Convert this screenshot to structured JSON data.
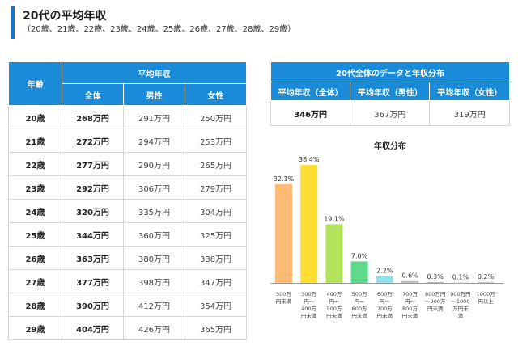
{
  "heading": {
    "title": "20代の平均年収",
    "subtitle": "（20歳、21歳、22歳、23歳、24歳、25歳、26歳、27歳、28歳、29歳）"
  },
  "age_table": {
    "header_age": "年齢",
    "header_group": "平均年収",
    "header_all": "全体",
    "header_male": "男性",
    "header_female": "女性",
    "rows": [
      {
        "age": "20歳",
        "all": "268万円",
        "male": "291万円",
        "female": "250万円"
      },
      {
        "age": "21歳",
        "all": "272万円",
        "male": "294万円",
        "female": "253万円"
      },
      {
        "age": "22歳",
        "all": "277万円",
        "male": "290万円",
        "female": "265万円"
      },
      {
        "age": "23歳",
        "all": "292万円",
        "male": "306万円",
        "female": "279万円"
      },
      {
        "age": "24歳",
        "all": "320万円",
        "male": "335万円",
        "female": "304万円"
      },
      {
        "age": "25歳",
        "all": "344万円",
        "male": "360万円",
        "female": "325万円"
      },
      {
        "age": "26歳",
        "all": "363万円",
        "male": "380万円",
        "female": "338万円"
      },
      {
        "age": "27歳",
        "all": "377万円",
        "male": "398万円",
        "female": "347万円"
      },
      {
        "age": "28歳",
        "all": "390万円",
        "male": "412万円",
        "female": "354万円"
      },
      {
        "age": "29歳",
        "all": "404万円",
        "male": "426万円",
        "female": "365万円"
      }
    ]
  },
  "summary_table": {
    "header": "20代全体のデータと年収分布",
    "col_all": "平均年収（全体）",
    "col_male": "平均年収（男性）",
    "col_female": "平均年収（女性）",
    "val_all": "346万円",
    "val_male": "367万円",
    "val_female": "319万円"
  },
  "chart_data": {
    "type": "bar",
    "title": "年収分布",
    "categories": [
      [
        "300万",
        "円未満"
      ],
      [
        "300万",
        "円～",
        "400万",
        "円未満"
      ],
      [
        "400万",
        "円～",
        "500万",
        "円未満"
      ],
      [
        "500万",
        "円～",
        "600万",
        "円未満"
      ],
      [
        "600万",
        "円～",
        "700万",
        "円未満"
      ],
      [
        "700万",
        "円～",
        "800万",
        "円未満"
      ],
      [
        "800万円",
        "～900万",
        "円未満"
      ],
      [
        "900万円",
        "～1000",
        "万円未",
        "満"
      ],
      [
        "1000万",
        "円以上"
      ]
    ],
    "values": [
      32.1,
      38.4,
      19.1,
      7.0,
      2.2,
      0.6,
      0.3,
      0.1,
      0.2
    ],
    "value_labels": [
      "32.1%",
      "38.4%",
      "19.1%",
      "7.0%",
      "2.2%",
      "0.6%",
      "0.3%",
      "0.1%",
      "0.2%"
    ],
    "colors": [
      "#ffbb73",
      "#ffdd33",
      "#b3e25c",
      "#5fd98a",
      "#8fe3f0",
      "#bfbfbf",
      "#bfbfbf",
      "#bfbfbf",
      "#bfbfbf"
    ],
    "ylim": [
      0,
      40
    ],
    "grid": false
  }
}
